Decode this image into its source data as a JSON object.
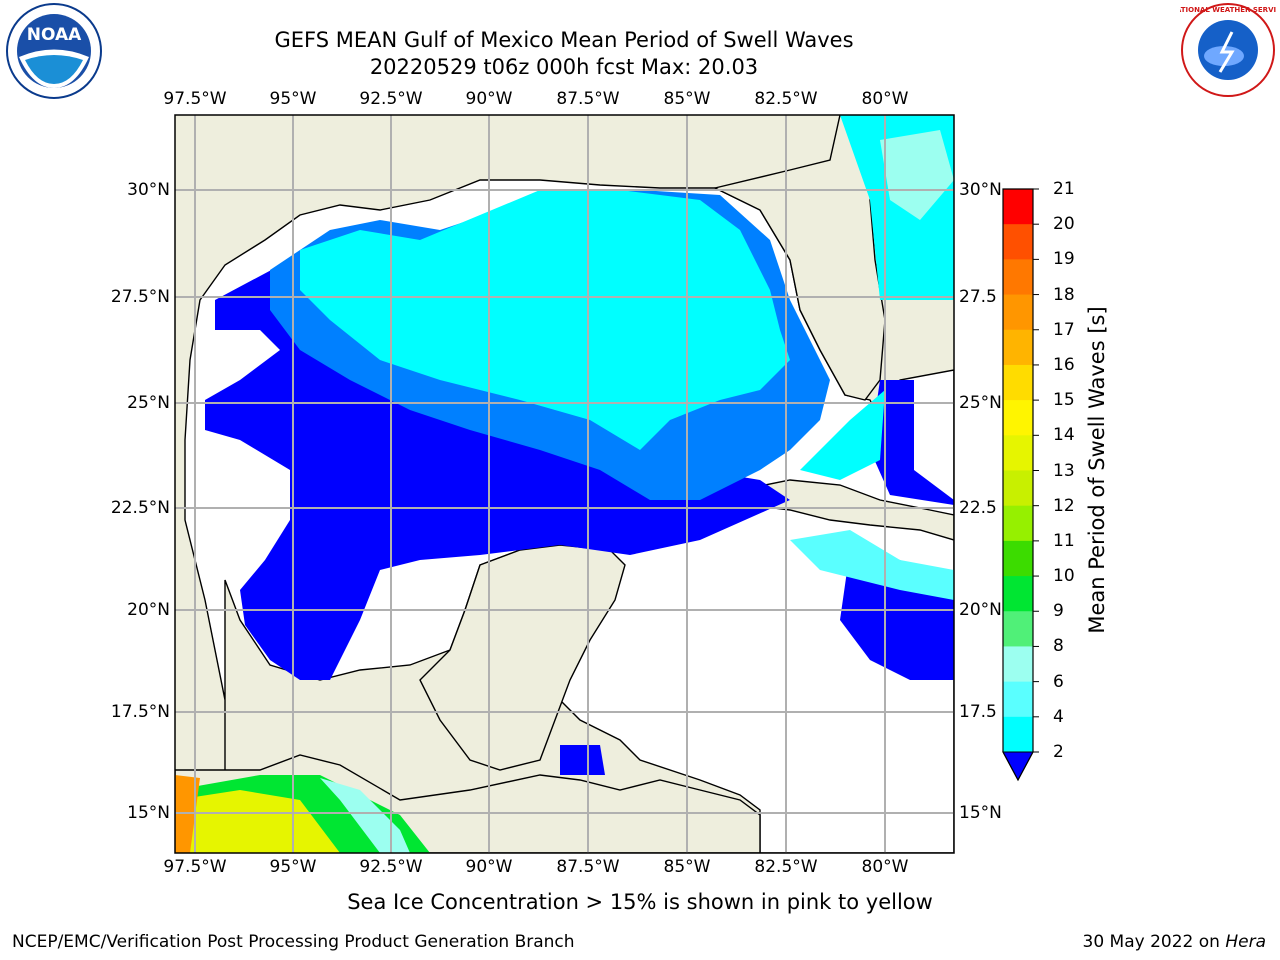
{
  "header": {
    "title_line1": "GEFS MEAN Gulf of Mexico Mean Period of Swell Waves",
    "title_line2": "20220529 t06z 000h fcst   Max: 20.03"
  },
  "logos": {
    "left": "NOAA",
    "right": "NATIONAL WEATHER SERVICE"
  },
  "map": {
    "lon_labels": [
      "97.5°W",
      "95°W",
      "92.5°W",
      "90°W",
      "87.5°W",
      "85°W",
      "82.5°W",
      "80°W"
    ],
    "lat_labels_left": [
      "30°N",
      "27.5°N",
      "25°N",
      "22.5°N",
      "20°N",
      "17.5°N",
      "15°N"
    ],
    "lat_labels_right": [
      "30°N",
      "27.5",
      "25°N",
      "22.5",
      "20°N",
      "17.5",
      "15°N"
    ],
    "colors": {
      "land": "#eeeedd",
      "water_blank": "#ffffff",
      "grid": "#b0b0b0"
    }
  },
  "colorbar": {
    "title": "Mean Period of Swell Waves [s]",
    "labels": [
      "21",
      "20",
      "19",
      "18",
      "17",
      "16",
      "15",
      "14",
      "13",
      "12",
      "11",
      "10",
      "9",
      "8",
      "6",
      "4",
      "2"
    ],
    "colors_top_to_bottom": [
      "#ff0000",
      "#ff2800",
      "#ff5000",
      "#ff7800",
      "#ff9600",
      "#ffb400",
      "#ffdc00",
      "#fff500",
      "#e6f500",
      "#c8f000",
      "#96f000",
      "#3cdc00",
      "#00e632",
      "#50f078",
      "#9cfff0",
      "#5affff",
      "#00ffff",
      "#0080ff"
    ],
    "extend_color": "#0000ff"
  },
  "notes": {
    "sea_ice": "Sea Ice Concentration > 15% is shown in pink to yellow",
    "footer_left": "NCEP/EMC/Verification Post Processing Product Generation Branch",
    "footer_date": "30 May 2022 on ",
    "footer_machine": "Hera"
  }
}
